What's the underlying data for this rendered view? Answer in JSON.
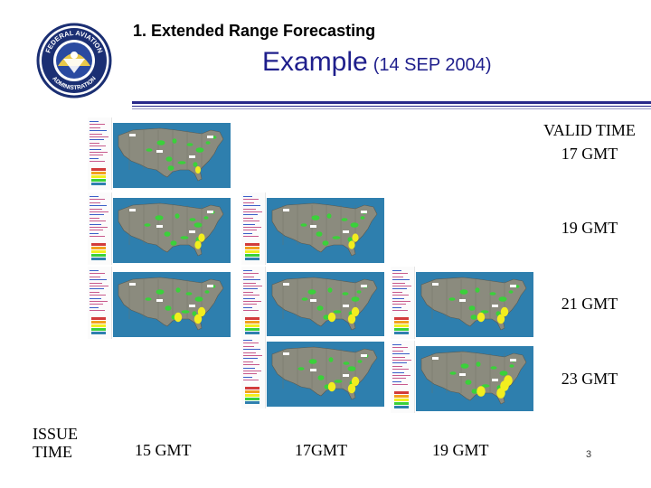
{
  "header": {
    "section_title": "1.  Extended Range Forecasting",
    "subtitle_word": "Example",
    "subtitle_date": "(14 SEP 2004)",
    "logo_text_top": "FEDERAL AVIATION",
    "logo_text_bottom": "ADMINISTRATION"
  },
  "valid_time": {
    "heading": "VALID TIME",
    "rows": [
      "17 GMT",
      "19 GMT",
      "21 GMT",
      "23 GMT"
    ]
  },
  "issue_time": {
    "heading_line1": "ISSUE",
    "heading_line2": "TIME",
    "columns": [
      "15 GMT",
      "17GMT",
      "19 GMT"
    ]
  },
  "page_number": "3",
  "colors": {
    "title_blue": "#1f1f8c",
    "rule_blue": "#2a2a8a",
    "ocean": "#2e7fae",
    "land": "#8b8b7e",
    "forecast_green": "#3ad13a",
    "forecast_yellow": "#f2ee1e",
    "logo_navy": "#1b2f73"
  }
}
